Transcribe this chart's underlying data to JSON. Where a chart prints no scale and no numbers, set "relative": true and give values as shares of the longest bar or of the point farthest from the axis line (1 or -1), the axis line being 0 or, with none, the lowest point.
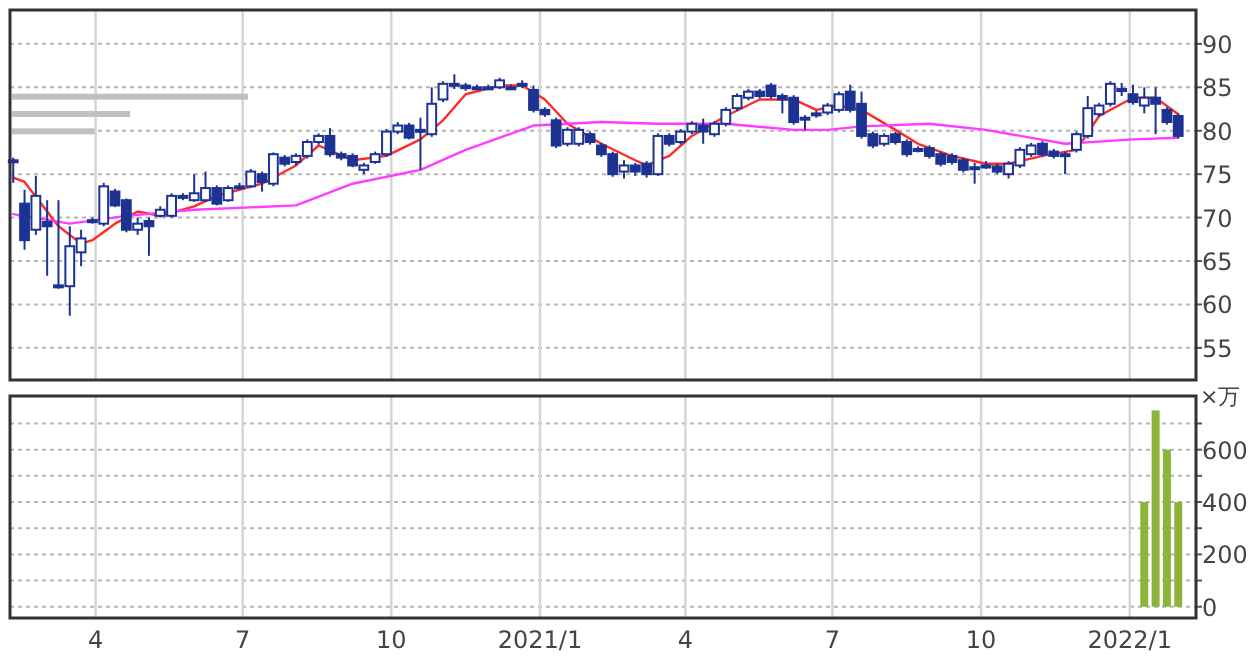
{
  "chart_data": [
    {
      "type": "candlestick",
      "color": "#1c3393",
      "grid": true,
      "tick_labels": "y",
      "xlim": [
        "2020-02-08",
        "2022-02-11"
      ],
      "xticks": [
        {
          "value": "2020-04-01",
          "label": null
        },
        {
          "value": "2020-07-01",
          "label": null
        },
        {
          "value": "2020-10-01",
          "label": null
        },
        {
          "value": "2021-01-01",
          "label": null
        },
        {
          "value": "2021-04-01",
          "label": null
        },
        {
          "value": "2021-07-01",
          "label": null
        },
        {
          "value": "2021-10-01",
          "label": null
        },
        {
          "value": "2022-01-01",
          "label": null
        }
      ],
      "ylim": [
        51.3,
        93.9
      ],
      "yticks": [
        55,
        60,
        65,
        70,
        75,
        80,
        85,
        90
      ],
      "x": [
        "2020-02-10",
        "2020-02-17",
        "2020-02-24",
        "2020-03-02",
        "2020-03-09",
        "2020-03-16",
        "2020-03-23",
        "2020-03-30",
        "2020-04-06",
        "2020-04-13",
        "2020-04-20",
        "2020-04-27",
        "2020-05-04",
        "2020-05-11",
        "2020-05-18",
        "2020-05-25",
        "2020-06-01",
        "2020-06-08",
        "2020-06-15",
        "2020-06-22",
        "2020-06-29",
        "2020-07-06",
        "2020-07-13",
        "2020-07-20",
        "2020-07-27",
        "2020-08-03",
        "2020-08-10",
        "2020-08-17",
        "2020-08-24",
        "2020-08-31",
        "2020-09-07",
        "2020-09-14",
        "2020-09-21",
        "2020-09-28",
        "2020-10-05",
        "2020-10-12",
        "2020-10-19",
        "2020-10-26",
        "2020-11-02",
        "2020-11-09",
        "2020-11-16",
        "2020-11-23",
        "2020-11-30",
        "2020-12-07",
        "2020-12-14",
        "2020-12-21",
        "2020-12-28",
        "2021-01-04",
        "2021-01-11",
        "2021-01-18",
        "2021-01-25",
        "2021-02-01",
        "2021-02-08",
        "2021-02-15",
        "2021-02-22",
        "2021-03-01",
        "2021-03-08",
        "2021-03-15",
        "2021-03-22",
        "2021-03-29",
        "2021-04-05",
        "2021-04-12",
        "2021-04-19",
        "2021-04-26",
        "2021-05-03",
        "2021-05-10",
        "2021-05-17",
        "2021-05-24",
        "2021-05-31",
        "2021-06-07",
        "2021-06-14",
        "2021-06-21",
        "2021-06-28",
        "2021-07-05",
        "2021-07-12",
        "2021-07-19",
        "2021-07-26",
        "2021-08-02",
        "2021-08-09",
        "2021-08-16",
        "2021-08-23",
        "2021-08-30",
        "2021-09-06",
        "2021-09-13",
        "2021-09-20",
        "2021-09-27",
        "2021-10-04",
        "2021-10-11",
        "2021-10-18",
        "2021-10-25",
        "2021-11-01",
        "2021-11-08",
        "2021-11-15",
        "2021-11-22",
        "2021-11-29",
        "2021-12-06",
        "2021-12-13",
        "2021-12-20",
        "2021-12-27",
        "2022-01-03",
        "2022-01-10",
        "2022-01-17",
        "2022-01-24",
        "2022-01-31"
      ],
      "ohlc": [
        [
          76.6,
          76.9,
          74.0,
          76.5
        ],
        [
          71.6,
          73.2,
          66.3,
          67.4
        ],
        [
          68.6,
          74.8,
          68.0,
          72.5
        ],
        [
          69.5,
          72.0,
          63.3,
          69.0
        ],
        [
          62.2,
          72.0,
          61.8,
          62.0
        ],
        [
          62.1,
          69.0,
          58.7,
          66.7
        ],
        [
          66.0,
          68.6,
          64.4,
          67.6
        ],
        [
          69.6,
          70.0,
          69.3,
          69.7
        ],
        [
          69.3,
          74.0,
          69.0,
          73.6
        ],
        [
          73.0,
          73.3,
          71.2,
          71.4
        ],
        [
          72.0,
          72.2,
          68.3,
          68.6
        ],
        [
          68.6,
          70.0,
          68.0,
          69.3
        ],
        [
          69.6,
          70.0,
          65.6,
          69.0
        ],
        [
          70.2,
          71.3,
          70.0,
          70.9
        ],
        [
          70.2,
          72.8,
          70.0,
          72.5
        ],
        [
          72.4,
          72.8,
          72.0,
          72.5
        ],
        [
          72.0,
          75.0,
          71.8,
          72.8
        ],
        [
          72.0,
          75.3,
          71.8,
          73.4
        ],
        [
          73.4,
          73.7,
          71.4,
          71.6
        ],
        [
          72.0,
          73.7,
          71.8,
          73.4
        ],
        [
          73.5,
          74.0,
          73.2,
          73.6
        ],
        [
          73.6,
          75.6,
          73.4,
          75.3
        ],
        [
          75.0,
          75.3,
          73.0,
          74.1
        ],
        [
          73.9,
          77.5,
          73.6,
          77.3
        ],
        [
          76.9,
          77.2,
          75.9,
          76.2
        ],
        [
          76.4,
          77.4,
          76.0,
          77.1
        ],
        [
          77.1,
          79.0,
          76.8,
          78.7
        ],
        [
          78.7,
          79.7,
          78.4,
          79.4
        ],
        [
          79.4,
          80.3,
          77.0,
          77.3
        ],
        [
          77.3,
          77.6,
          76.6,
          76.9
        ],
        [
          77.1,
          77.4,
          75.8,
          76.0
        ],
        [
          75.5,
          76.3,
          75.0,
          76.0
        ],
        [
          76.4,
          77.6,
          76.2,
          77.3
        ],
        [
          77.3,
          80.2,
          77.0,
          79.9
        ],
        [
          79.9,
          81.0,
          79.6,
          80.6
        ],
        [
          80.6,
          80.9,
          79.0,
          79.2
        ],
        [
          80.0,
          81.5,
          75.5,
          80.1
        ],
        [
          79.6,
          85.0,
          79.3,
          83.1
        ],
        [
          83.6,
          85.7,
          83.3,
          85.4
        ],
        [
          85.3,
          86.5,
          84.8,
          85.4
        ],
        [
          85.2,
          85.5,
          84.6,
          84.9
        ],
        [
          85.0,
          85.3,
          84.7,
          85.0
        ],
        [
          85.0,
          85.3,
          84.7,
          85.0
        ],
        [
          85.0,
          86.1,
          84.8,
          85.8
        ],
        [
          85.0,
          85.3,
          84.7,
          85.0
        ],
        [
          85.3,
          85.8,
          84.9,
          85.4
        ],
        [
          84.7,
          85.2,
          82.1,
          82.4
        ],
        [
          82.4,
          82.7,
          81.6,
          81.9
        ],
        [
          81.2,
          81.5,
          78.0,
          78.3
        ],
        [
          78.5,
          80.4,
          78.2,
          80.1
        ],
        [
          78.5,
          80.4,
          78.2,
          80.1
        ],
        [
          79.6,
          79.9,
          78.4,
          78.7
        ],
        [
          78.3,
          78.6,
          77.0,
          77.3
        ],
        [
          77.3,
          77.6,
          74.7,
          75.0
        ],
        [
          75.3,
          76.6,
          74.5,
          76.0
        ],
        [
          76.0,
          76.3,
          74.8,
          75.3
        ],
        [
          76.2,
          76.5,
          74.6,
          75.0
        ],
        [
          75.0,
          79.7,
          74.8,
          79.4
        ],
        [
          79.4,
          79.7,
          78.2,
          78.5
        ],
        [
          78.7,
          80.2,
          78.4,
          79.9
        ],
        [
          79.9,
          81.1,
          79.6,
          80.8
        ],
        [
          80.6,
          81.4,
          78.5,
          79.9
        ],
        [
          79.6,
          81.1,
          79.3,
          80.8
        ],
        [
          80.8,
          82.7,
          80.5,
          82.4
        ],
        [
          82.6,
          84.3,
          82.3,
          84.0
        ],
        [
          83.8,
          84.8,
          83.5,
          84.5
        ],
        [
          84.5,
          84.8,
          83.7,
          84.0
        ],
        [
          85.2,
          85.5,
          83.7,
          84.0
        ],
        [
          84.0,
          84.3,
          82.0,
          83.6
        ],
        [
          83.8,
          84.1,
          80.7,
          81.0
        ],
        [
          81.4,
          81.8,
          80.1,
          81.5
        ],
        [
          81.9,
          82.3,
          81.5,
          82.0
        ],
        [
          82.1,
          83.2,
          81.8,
          82.9
        ],
        [
          82.4,
          84.5,
          82.1,
          84.2
        ],
        [
          84.5,
          85.3,
          82.1,
          82.4
        ],
        [
          83.1,
          84.5,
          79.1,
          79.4
        ],
        [
          79.6,
          79.9,
          78.0,
          78.3
        ],
        [
          78.5,
          79.7,
          78.2,
          79.4
        ],
        [
          79.6,
          79.9,
          78.4,
          78.7
        ],
        [
          78.7,
          79.0,
          77.0,
          77.3
        ],
        [
          77.9,
          78.2,
          77.5,
          77.8
        ],
        [
          78.0,
          78.3,
          76.8,
          77.1
        ],
        [
          77.3,
          77.6,
          75.9,
          76.2
        ],
        [
          77.1,
          77.4,
          76.1,
          76.4
        ],
        [
          76.6,
          76.9,
          75.2,
          75.5
        ],
        [
          75.8,
          76.3,
          73.9,
          75.7
        ],
        [
          76.0,
          76.5,
          75.6,
          76.0
        ],
        [
          75.9,
          76.2,
          75.0,
          75.3
        ],
        [
          75.0,
          76.5,
          74.5,
          76.2
        ],
        [
          76.0,
          78.1,
          75.7,
          77.8
        ],
        [
          77.3,
          78.6,
          77.0,
          78.3
        ],
        [
          78.5,
          78.8,
          77.0,
          77.3
        ],
        [
          77.6,
          77.9,
          76.8,
          77.1
        ],
        [
          77.3,
          77.6,
          75.0,
          77.2
        ],
        [
          77.8,
          79.9,
          77.5,
          79.6
        ],
        [
          79.4,
          84.0,
          79.1,
          82.6
        ],
        [
          81.9,
          83.2,
          81.6,
          82.9
        ],
        [
          83.1,
          85.7,
          82.8,
          85.4
        ],
        [
          84.8,
          85.5,
          84.0,
          84.7
        ],
        [
          84.2,
          85.3,
          83.0,
          83.3
        ],
        [
          82.9,
          85.0,
          82.0,
          83.8
        ],
        [
          83.8,
          85.0,
          79.6,
          83.1
        ],
        [
          82.4,
          82.7,
          80.7,
          81.0
        ],
        [
          81.7,
          82.0,
          79.1,
          79.4
        ]
      ],
      "series": [
        {
          "type": "line",
          "color": "#ff2a2a",
          "x": [
            "2020-02-10",
            "2020-02-17",
            "2020-03-09",
            "2020-03-23",
            "2020-03-30",
            "2020-04-13",
            "2020-04-27",
            "2020-05-11",
            "2020-06-01",
            "2020-06-15",
            "2020-07-13",
            "2020-08-03",
            "2020-08-17",
            "2020-09-07",
            "2020-09-28",
            "2020-10-19",
            "2020-11-02",
            "2020-11-16",
            "2020-12-07",
            "2020-12-21",
            "2021-01-04",
            "2021-01-18",
            "2021-02-08",
            "2021-03-01",
            "2021-03-08",
            "2021-03-22",
            "2021-04-05",
            "2021-04-26",
            "2021-05-17",
            "2021-06-07",
            "2021-06-21",
            "2021-07-05",
            "2021-07-19",
            "2021-08-09",
            "2021-08-23",
            "2021-09-13",
            "2021-10-04",
            "2021-10-18",
            "2021-11-08",
            "2021-11-29",
            "2021-12-13",
            "2022-01-03",
            "2022-01-17",
            "2022-01-31"
          ],
          "values": [
            74.6,
            74.1,
            69.0,
            67.0,
            67.4,
            69.3,
            70.7,
            70.2,
            71.3,
            72.5,
            73.9,
            76.0,
            78.3,
            76.6,
            77.1,
            79.0,
            81.2,
            84.2,
            85.2,
            85.2,
            83.6,
            80.8,
            78.5,
            76.6,
            76.0,
            77.1,
            79.4,
            81.7,
            83.6,
            83.6,
            82.4,
            82.9,
            82.4,
            80.1,
            78.5,
            77.1,
            76.2,
            76.2,
            77.1,
            77.8,
            81.7,
            83.8,
            83.8,
            81.9
          ]
        },
        {
          "type": "line",
          "color": "#ff3cff",
          "x": [
            "2020-02-10",
            "2020-03-16",
            "2020-04-20",
            "2020-06-01",
            "2020-08-03",
            "2020-09-07",
            "2020-10-19",
            "2020-11-16",
            "2020-12-28",
            "2021-01-18",
            "2021-02-08",
            "2021-03-15",
            "2021-04-26",
            "2021-06-07",
            "2021-06-28",
            "2021-07-19",
            "2021-08-30",
            "2021-10-04",
            "2021-11-22",
            "2022-01-03",
            "2022-01-31"
          ],
          "values": [
            70.4,
            69.3,
            70.2,
            70.9,
            71.4,
            73.9,
            75.5,
            77.8,
            80.6,
            80.8,
            81.0,
            80.8,
            80.8,
            80.1,
            80.1,
            80.5,
            80.8,
            80.1,
            78.5,
            79.0,
            79.2
          ]
        }
      ]
    },
    {
      "type": "bar",
      "color": "#8db33a",
      "grid": true,
      "ylabel": "×万",
      "xlim": [
        "2020-02-08",
        "2022-02-11"
      ],
      "xticks": [
        {
          "value": "2020-04-01",
          "label": "4"
        },
        {
          "value": "2020-07-01",
          "label": "7"
        },
        {
          "value": "2020-10-01",
          "label": "10"
        },
        {
          "value": "2021-01-01",
          "label": "2021/1"
        },
        {
          "value": "2021-04-01",
          "label": "4"
        },
        {
          "value": "2021-07-01",
          "label": "7"
        },
        {
          "value": "2021-10-01",
          "label": "10"
        },
        {
          "value": "2022-01-01",
          "label": "2022/1"
        }
      ],
      "ylim": [
        -43,
        805
      ],
      "yticks": [
        0,
        {
          "value": 100,
          "label": null
        },
        200,
        {
          "value": 300,
          "label": null
        },
        400,
        {
          "value": 500,
          "label": null
        },
        600,
        {
          "value": 700,
          "label": null
        }
      ],
      "x": [
        "2022-01-10",
        "2022-01-17",
        "2022-01-24",
        "2022-01-31"
      ],
      "values": [
        400,
        750,
        600,
        400
      ]
    },
    {
      "type": "bar",
      "orientation": "horizontal",
      "relative": true,
      "color": "#c0c0c0",
      "categories": [
        null,
        null,
        null
      ],
      "values": [
        1,
        0.5,
        0.35
      ]
    }
  ]
}
